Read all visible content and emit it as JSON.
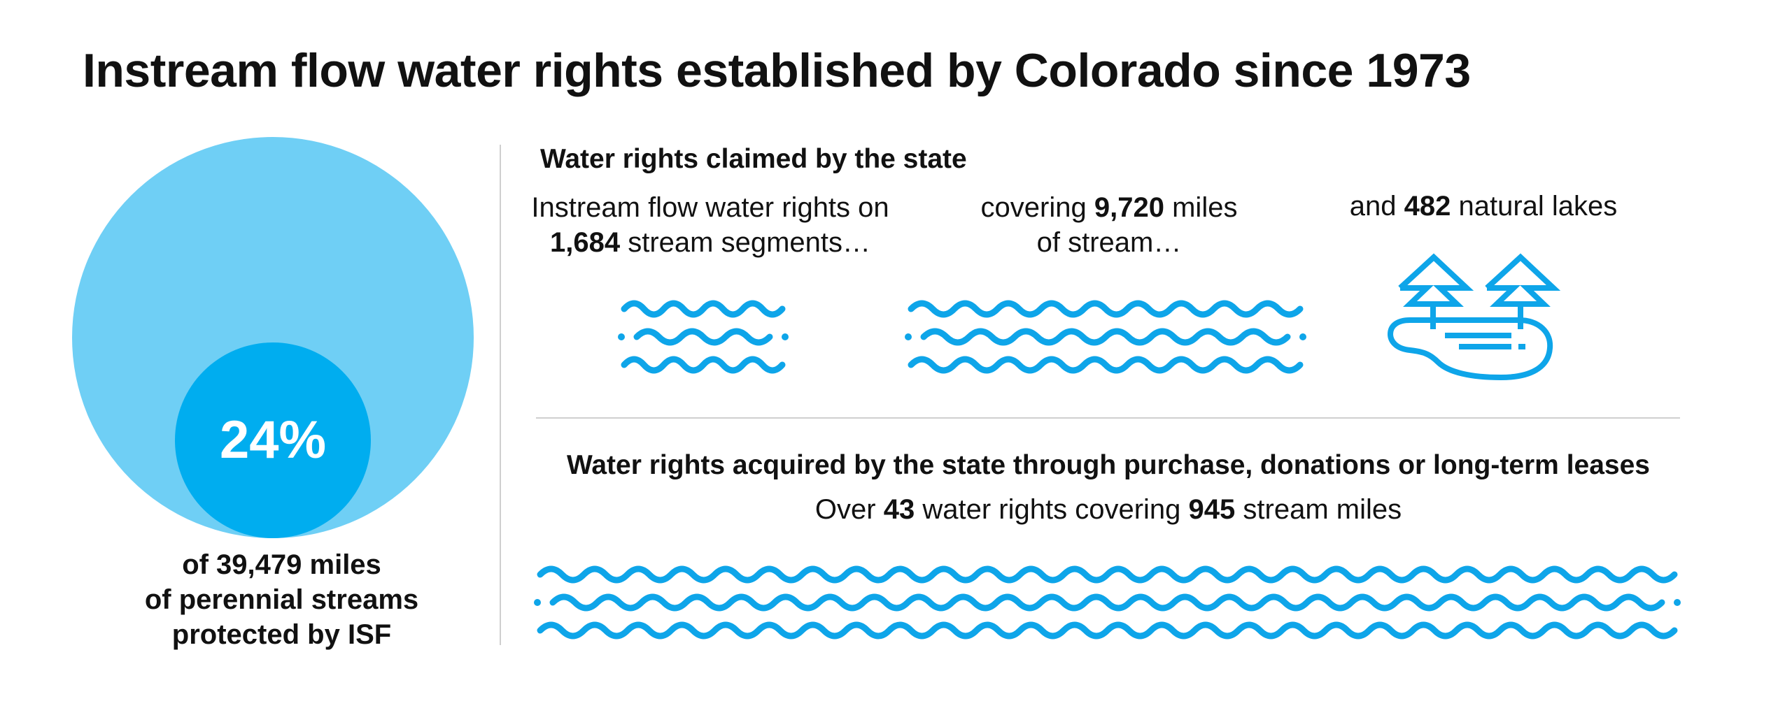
{
  "title": "Instream flow water rights established by Colorado since 1973",
  "colors": {
    "outer_circle": "#6fcff5",
    "inner_circle": "#00adef",
    "icon": "#0ea5e9",
    "divider": "#cfcfcf",
    "text": "#111111"
  },
  "protected": {
    "percent": 24,
    "percent_label": "24%",
    "caption_lines": [
      "of 39,479 miles",
      "of perennial streams",
      "protected by ISF"
    ]
  },
  "claimed": {
    "heading": "Water rights claimed by the state",
    "segments": {
      "line1": "Instream flow water rights on",
      "number": "1,684",
      "line2_suffix": "stream segments…",
      "icon": "waves-icon"
    },
    "miles": {
      "prefix": "covering",
      "number": "9,720",
      "suffix": "miles",
      "line2": "of stream…",
      "icon": "waves-icon"
    },
    "lakes": {
      "prefix": "and",
      "number": "482",
      "suffix": "natural lakes",
      "icon": "lake-with-trees-icon"
    }
  },
  "acquired": {
    "heading": "Water rights acquired by the state through purchase, donations or long-term leases",
    "prefix": "Over",
    "rights_number": "43",
    "middle": "water rights covering",
    "miles_number": "945",
    "suffix": "stream miles",
    "icon": "waves-icon"
  }
}
